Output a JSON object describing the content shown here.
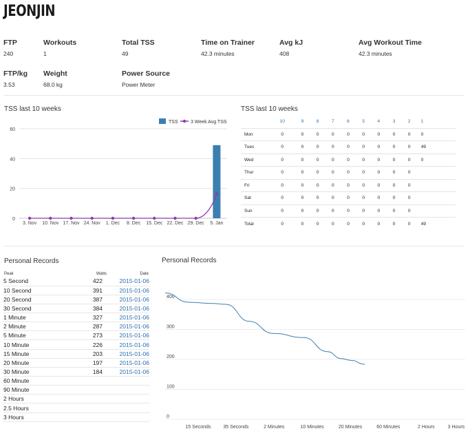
{
  "athlete": {
    "name": "JEONJIN"
  },
  "stats": [
    {
      "label": "FTP",
      "value": "240"
    },
    {
      "label": "Workouts",
      "value": "1"
    },
    {
      "label": "Total TSS",
      "value": "49"
    },
    {
      "label": "Time on Trainer",
      "value": "42.3 minutes"
    },
    {
      "label": "Avg kJ",
      "value": "408"
    },
    {
      "label": "Avg Workout Time",
      "value": "42.3 minutes"
    },
    {
      "label": "FTP/kg",
      "value": "3.53"
    },
    {
      "label": "Weight",
      "value": "68.0 kg"
    },
    {
      "label": "Power Source",
      "value": "Power Meter"
    }
  ],
  "tss_chart": {
    "title": "TSS last 10 weeks",
    "legend": {
      "bar": "TSS",
      "line": "3 Week Avg TSS"
    },
    "bar_color": "#3b7fb0",
    "line_color": "#8e3bab"
  },
  "tss_table": {
    "title": "TSS last 10 weeks",
    "weeks": [
      "10",
      "9",
      "8",
      "7",
      "6",
      "5",
      "4",
      "3",
      "2",
      "1"
    ],
    "rows": [
      {
        "day": "Mon",
        "values": [
          "0",
          "0",
          "0",
          "0",
          "0",
          "0",
          "0",
          "0",
          "0",
          "0"
        ]
      },
      {
        "day": "Tues",
        "values": [
          "0",
          "0",
          "0",
          "0",
          "0",
          "0",
          "0",
          "0",
          "0",
          "49"
        ]
      },
      {
        "day": "Wed",
        "values": [
          "0",
          "0",
          "0",
          "0",
          "0",
          "0",
          "0",
          "0",
          "0",
          "0"
        ]
      },
      {
        "day": "Thur",
        "values": [
          "0",
          "0",
          "0",
          "0",
          "0",
          "0",
          "0",
          "0",
          "0",
          ""
        ]
      },
      {
        "day": "Fri",
        "values": [
          "0",
          "0",
          "0",
          "0",
          "0",
          "0",
          "0",
          "0",
          "0",
          ""
        ]
      },
      {
        "day": "Sat",
        "values": [
          "0",
          "0",
          "0",
          "0",
          "0",
          "0",
          "0",
          "0",
          "0",
          ""
        ]
      },
      {
        "day": "Sun",
        "values": [
          "0",
          "0",
          "0",
          "0",
          "0",
          "0",
          "0",
          "0",
          "0",
          ""
        ]
      },
      {
        "day": "Total",
        "values": [
          "0",
          "0",
          "0",
          "0",
          "0",
          "0",
          "0",
          "0",
          "0",
          "49"
        ]
      }
    ]
  },
  "pr_table": {
    "title": "Personal Records",
    "headers": {
      "peak": "Peak",
      "watts": "Watts",
      "date": "Date"
    },
    "rows": [
      {
        "peak": "5 Second",
        "watts": "422",
        "date": "2015-01-06"
      },
      {
        "peak": "10 Second",
        "watts": "391",
        "date": "2015-01-06"
      },
      {
        "peak": "20 Second",
        "watts": "387",
        "date": "2015-01-06"
      },
      {
        "peak": "30 Second",
        "watts": "384",
        "date": "2015-01-06"
      },
      {
        "peak": "1 Minute",
        "watts": "327",
        "date": "2015-01-06"
      },
      {
        "peak": "2 Minute",
        "watts": "287",
        "date": "2015-01-06"
      },
      {
        "peak": "5 Minute",
        "watts": "273",
        "date": "2015-01-06"
      },
      {
        "peak": "10 Minute",
        "watts": "226",
        "date": "2015-01-06"
      },
      {
        "peak": "15 Minute",
        "watts": "203",
        "date": "2015-01-06"
      },
      {
        "peak": "20 Minute",
        "watts": "197",
        "date": "2015-01-06"
      },
      {
        "peak": "30 Minute",
        "watts": "184",
        "date": "2015-01-06"
      },
      {
        "peak": "60 Minute",
        "watts": "",
        "date": ""
      },
      {
        "peak": "90 Minute",
        "watts": "",
        "date": ""
      },
      {
        "peak": "2 Hours",
        "watts": "",
        "date": ""
      },
      {
        "peak": "2.5 Hours",
        "watts": "",
        "date": ""
      },
      {
        "peak": "3 Hours",
        "watts": "",
        "date": ""
      }
    ]
  },
  "pr_chart": {
    "title": "Personal Records",
    "line_color": "#3b7fb0"
  },
  "chart_data": [
    {
      "type": "bar",
      "title": "TSS last 10 weeks",
      "categories": [
        "3. Nov",
        "10. Nov",
        "17. Nov",
        "24. Nov",
        "1. Dec",
        "8. Dec",
        "15. Dec",
        "22. Dec",
        "29. Dec",
        "5. Jan"
      ],
      "series": [
        {
          "name": "TSS",
          "type": "bar",
          "values": [
            0,
            0,
            0,
            0,
            0,
            0,
            0,
            0,
            0,
            49
          ]
        },
        {
          "name": "3 Week Avg TSS",
          "type": "line",
          "values": [
            0,
            0,
            0,
            0,
            0,
            0,
            0,
            0,
            0,
            16.3
          ]
        }
      ],
      "yticks": [
        0,
        20,
        40,
        60
      ],
      "ylim": [
        0,
        60
      ],
      "grid": true,
      "legend": "top-right"
    },
    {
      "type": "line",
      "title": "Personal Records",
      "x": [
        5,
        10,
        20,
        30,
        60,
        120,
        300,
        600,
        900,
        1200,
        1800
      ],
      "y": [
        422,
        391,
        387,
        384,
        327,
        287,
        273,
        226,
        203,
        197,
        184
      ],
      "xticks": [
        "15 Seconds",
        "35 Seconds",
        "2 Minutes",
        "10 Minutes",
        "20 Minutes",
        "60 Minutes",
        "2 Hours",
        "3 Hours"
      ],
      "yticks": [
        0,
        100,
        200,
        300,
        400
      ],
      "ylim": [
        0,
        430
      ],
      "grid": true
    }
  ]
}
